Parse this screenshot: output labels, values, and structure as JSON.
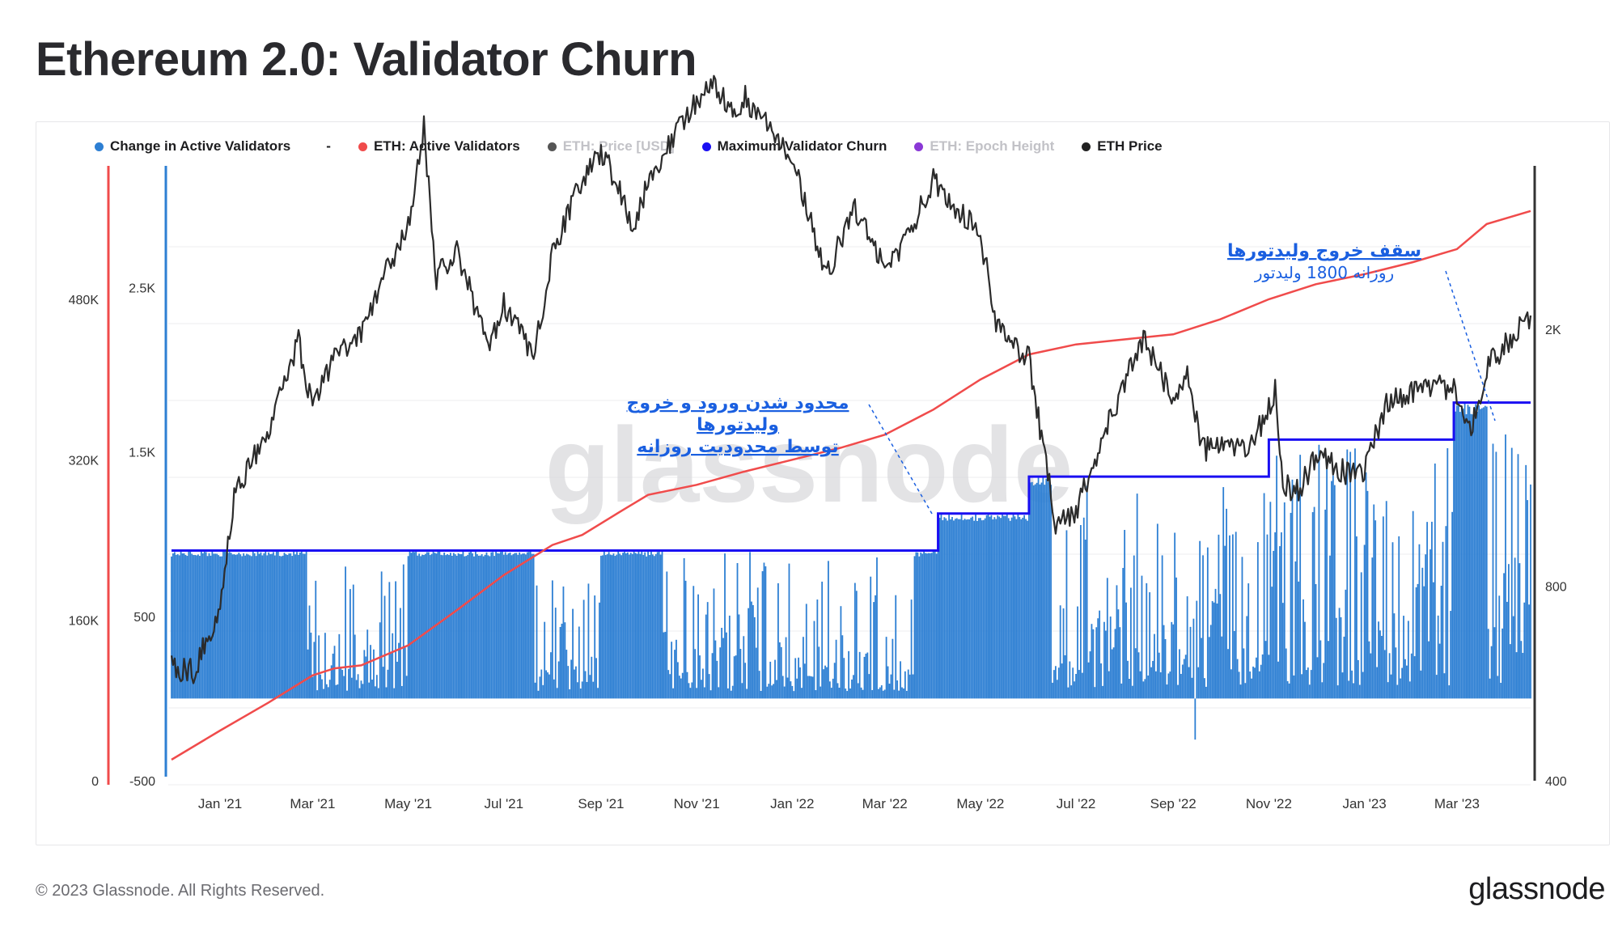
{
  "page": {
    "title": "Ethereum 2.0: Validator Churn",
    "copyright": "© 2023 Glassnode. All Rights Reserved.",
    "logo": "glassnode",
    "watermark": "glassnode"
  },
  "legend": [
    {
      "label": "Change in Active Validators",
      "color": "#2d7fd3",
      "muted": false
    },
    {
      "label": "-",
      "color": "",
      "muted": false,
      "dash": true
    },
    {
      "label": "ETH: Active Validators",
      "color": "#f04b4b",
      "muted": false
    },
    {
      "label": "ETH: Price [USD]",
      "color": "#555555",
      "muted": true
    },
    {
      "label": "Maximum Validator Churn",
      "color": "#1a0ff2",
      "muted": false
    },
    {
      "label": "ETH: Epoch Height",
      "color": "#8a38d6",
      "muted": true
    },
    {
      "label": "ETH Price",
      "color": "#222222",
      "muted": false
    }
  ],
  "colors": {
    "bars": "#2d7fd3",
    "active_validators": "#f04b4b",
    "max_churn": "#1a0ff2",
    "eth_price": "#2b2b2b",
    "grid": "#ececef",
    "annotation": "#1a5fe0",
    "axis_red": "#f04b4b",
    "axis_blue": "#2d7fd3",
    "axis_dark": "#333333"
  },
  "annotations": [
    {
      "lines": [
        "محدود شدن ورود و خروج",
        "ولیدتورها",
        "توسط محدودیت روزانه"
      ],
      "underline": true
    },
    {
      "lines": [
        "سقف خروج ولیدتورها",
        "روزانه 1800 ولیدتور"
      ],
      "underline_first": true
    }
  ],
  "chart_data": {
    "type": "bar",
    "x_range": [
      "2020-12-01",
      "2023-04-17"
    ],
    "x_ticks": [
      "Jan '21",
      "Mar '21",
      "May '21",
      "Jul '21",
      "Sep '21",
      "Nov '21",
      "Jan '22",
      "Mar '22",
      "May '22",
      "Jul '22",
      "Sep '22",
      "Nov '22",
      "Jan '23",
      "Mar '23"
    ],
    "x_tick_dates": [
      "2021-01-01",
      "2021-03-01",
      "2021-05-01",
      "2021-07-01",
      "2021-09-01",
      "2021-11-01",
      "2022-01-01",
      "2022-03-01",
      "2022-05-01",
      "2022-07-01",
      "2022-09-01",
      "2022-11-01",
      "2023-01-01",
      "2023-03-01"
    ],
    "axes": {
      "active_validators": {
        "side": "left-outer",
        "min": 0,
        "max": 613000,
        "ticks": [
          0,
          160000,
          320000,
          480000
        ],
        "tick_labels": [
          "0",
          "160K",
          "320K",
          "480K"
        ]
      },
      "change": {
        "side": "left-inner",
        "min": -500,
        "max": 3240,
        "ticks": [
          -500,
          500,
          1500,
          2500
        ],
        "tick_labels": [
          "-500",
          "500",
          "1.5K",
          "2.5K"
        ]
      },
      "price": {
        "side": "right",
        "scale": "log",
        "min": 400,
        "max": 3580,
        "ticks": [
          400,
          800,
          2000
        ],
        "tick_labels": [
          "400",
          "800",
          "2K"
        ]
      }
    },
    "series": {
      "max_churn_steps": [
        {
          "from": "2020-12-01",
          "value": 900
        },
        {
          "from": "2022-04-04",
          "value": 1125
        },
        {
          "from": "2022-06-01",
          "value": 1350
        },
        {
          "from": "2022-11-01",
          "value": 1575
        },
        {
          "from": "2023-02-27",
          "value": 1800
        }
      ],
      "active_validators": [
        [
          "2020-12-01",
          21000
        ],
        [
          "2021-01-01",
          50000
        ],
        [
          "2021-02-01",
          78000
        ],
        [
          "2021-03-01",
          105000
        ],
        [
          "2021-03-15",
          112000
        ],
        [
          "2021-04-01",
          115000
        ],
        [
          "2021-05-01",
          135000
        ],
        [
          "2021-06-01",
          170000
        ],
        [
          "2021-07-01",
          205000
        ],
        [
          "2021-08-01",
          235000
        ],
        [
          "2021-08-20",
          245000
        ],
        [
          "2021-09-15",
          270000
        ],
        [
          "2021-10-01",
          285000
        ],
        [
          "2021-11-01",
          295000
        ],
        [
          "2021-12-01",
          308000
        ],
        [
          "2022-01-01",
          320000
        ],
        [
          "2022-02-01",
          332000
        ],
        [
          "2022-03-01",
          345000
        ],
        [
          "2022-04-01",
          370000
        ],
        [
          "2022-05-01",
          400000
        ],
        [
          "2022-06-01",
          425000
        ],
        [
          "2022-07-01",
          435000
        ],
        [
          "2022-08-01",
          440000
        ],
        [
          "2022-09-01",
          445000
        ],
        [
          "2022-10-01",
          460000
        ],
        [
          "2022-11-01",
          480000
        ],
        [
          "2022-12-01",
          495000
        ],
        [
          "2023-01-01",
          505000
        ],
        [
          "2023-02-01",
          517000
        ],
        [
          "2023-03-01",
          530000
        ],
        [
          "2023-03-20",
          555000
        ],
        [
          "2023-04-17",
          568000
        ]
      ],
      "eth_price": [
        [
          "2020-12-01",
          600
        ],
        [
          "2020-12-15",
          590
        ],
        [
          "2021-01-01",
          740
        ],
        [
          "2021-01-10",
          1100
        ],
        [
          "2021-01-20",
          1250
        ],
        [
          "2021-02-01",
          1380
        ],
        [
          "2021-02-20",
          1920
        ],
        [
          "2021-03-01",
          1500
        ],
        [
          "2021-03-15",
          1820
        ],
        [
          "2021-04-01",
          1950
        ],
        [
          "2021-04-15",
          2400
        ],
        [
          "2021-05-01",
          2900
        ],
        [
          "2021-05-11",
          4100
        ],
        [
          "2021-05-19",
          2400
        ],
        [
          "2021-06-01",
          2650
        ],
        [
          "2021-06-22",
          1850
        ],
        [
          "2021-07-01",
          2200
        ],
        [
          "2021-07-20",
          1800
        ],
        [
          "2021-08-01",
          2600
        ],
        [
          "2021-08-15",
          3200
        ],
        [
          "2021-09-01",
          3800
        ],
        [
          "2021-09-22",
          2900
        ],
        [
          "2021-10-01",
          3400
        ],
        [
          "2021-10-20",
          4100
        ],
        [
          "2021-11-10",
          4800
        ],
        [
          "2021-11-25",
          4300
        ],
        [
          "2021-12-01",
          4600
        ],
        [
          "2021-12-20",
          4000
        ],
        [
          "2022-01-01",
          3750
        ],
        [
          "2022-01-22",
          2400
        ],
        [
          "2022-02-10",
          3100
        ],
        [
          "2022-02-24",
          2600
        ],
        [
          "2022-03-10",
          2600
        ],
        [
          "2022-04-01",
          3400
        ],
        [
          "2022-04-20",
          3000
        ],
        [
          "2022-05-01",
          2800
        ],
        [
          "2022-05-12",
          2000
        ],
        [
          "2022-06-01",
          1800
        ],
        [
          "2022-06-18",
          1000
        ],
        [
          "2022-07-01",
          1050
        ],
        [
          "2022-07-15",
          1300
        ],
        [
          "2022-08-13",
          1950
        ],
        [
          "2022-09-01",
          1550
        ],
        [
          "2022-09-10",
          1700
        ],
        [
          "2022-09-20",
          1300
        ],
        [
          "2022-10-01",
          1320
        ],
        [
          "2022-10-20",
          1300
        ],
        [
          "2022-11-05",
          1600
        ],
        [
          "2022-11-10",
          1150
        ],
        [
          "2022-11-20",
          1120
        ],
        [
          "2022-12-01",
          1280
        ],
        [
          "2022-12-20",
          1200
        ],
        [
          "2023-01-01",
          1200
        ],
        [
          "2023-01-15",
          1550
        ],
        [
          "2023-02-01",
          1600
        ],
        [
          "2023-02-15",
          1650
        ],
        [
          "2023-03-01",
          1600
        ],
        [
          "2023-03-10",
          1400
        ],
        [
          "2023-03-20",
          1750
        ],
        [
          "2023-04-17",
          2100
        ]
      ]
    }
  }
}
